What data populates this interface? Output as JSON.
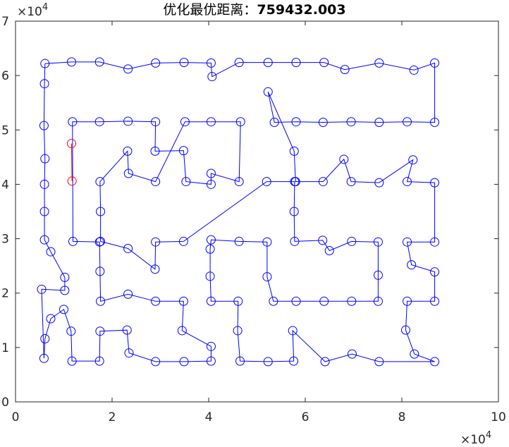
{
  "chart_data": {
    "type": "line",
    "title_prefix": "优化最优距离：",
    "title_value": "759432.003",
    "x_multiplier_label": "×10",
    "x_multiplier_exp": "4",
    "y_multiplier_label": "×10",
    "y_multiplier_exp": "4",
    "xlim": [
      0,
      100000
    ],
    "ylim": [
      0,
      70000
    ],
    "x_ticks": [
      0,
      20000,
      40000,
      60000,
      80000,
      100000
    ],
    "x_tick_labels": [
      "0",
      "2",
      "4",
      "6",
      "8",
      "10"
    ],
    "y_ticks": [
      0,
      10000,
      20000,
      30000,
      40000,
      50000,
      60000,
      70000
    ],
    "y_tick_labels": [
      "0",
      "1",
      "2",
      "3",
      "4",
      "5",
      "6",
      "7"
    ],
    "grid": false,
    "route_color": "#0000ff",
    "highlight_color": "#ff0000",
    "route": [
      [
        6100,
        62200
      ],
      [
        11600,
        62500
      ],
      [
        17400,
        62500
      ],
      [
        23300,
        61200
      ],
      [
        29000,
        62300
      ],
      [
        34900,
        62400
      ],
      [
        40500,
        62300
      ],
      [
        40700,
        59800
      ],
      [
        46300,
        62400
      ],
      [
        52300,
        62400
      ],
      [
        58100,
        62400
      ],
      [
        63900,
        62400
      ],
      [
        68200,
        61100
      ],
      [
        75300,
        62300
      ],
      [
        82500,
        61000
      ],
      [
        86800,
        62300
      ],
      [
        86800,
        51400
      ],
      [
        81100,
        51500
      ],
      [
        75300,
        51400
      ],
      [
        69500,
        51500
      ],
      [
        63700,
        51400
      ],
      [
        58100,
        51500
      ],
      [
        53600,
        51400
      ],
      [
        52300,
        57000
      ],
      [
        57700,
        46100
      ],
      [
        58000,
        40500
      ],
      [
        63700,
        40500
      ],
      [
        68000,
        44600
      ],
      [
        69500,
        40500
      ],
      [
        75300,
        40300
      ],
      [
        82300,
        44500
      ],
      [
        81100,
        40500
      ],
      [
        86800,
        40300
      ],
      [
        86800,
        29400
      ],
      [
        81100,
        29400
      ],
      [
        82000,
        25200
      ],
      [
        86800,
        23900
      ],
      [
        86800,
        18500
      ],
      [
        81100,
        18500
      ],
      [
        80800,
        13200
      ],
      [
        82600,
        8800
      ],
      [
        86800,
        7400
      ],
      [
        75300,
        7400
      ],
      [
        69700,
        8800
      ],
      [
        64100,
        7400
      ],
      [
        57400,
        13100
      ],
      [
        57600,
        7500
      ],
      [
        52300,
        7400
      ],
      [
        46500,
        7500
      ],
      [
        46000,
        13100
      ],
      [
        46100,
        18500
      ],
      [
        40500,
        18500
      ],
      [
        40300,
        23100
      ],
      [
        40300,
        28100
      ],
      [
        40500,
        29800
      ],
      [
        46300,
        29500
      ],
      [
        52100,
        29400
      ],
      [
        52100,
        23000
      ],
      [
        53400,
        18500
      ],
      [
        58100,
        18500
      ],
      [
        63900,
        18500
      ],
      [
        69600,
        18500
      ],
      [
        75100,
        18500
      ],
      [
        75100,
        23300
      ],
      [
        75100,
        29400
      ],
      [
        69600,
        29500
      ],
      [
        65000,
        27800
      ],
      [
        63600,
        29700
      ],
      [
        57800,
        29500
      ],
      [
        57700,
        35000
      ],
      [
        57800,
        40500
      ],
      [
        52000,
        40500
      ],
      [
        34800,
        29500
      ],
      [
        29000,
        29400
      ],
      [
        28900,
        24400
      ],
      [
        23300,
        28200
      ],
      [
        17600,
        29500
      ],
      [
        17600,
        35000
      ],
      [
        17500,
        40500
      ],
      [
        23200,
        46100
      ],
      [
        23400,
        42000
      ],
      [
        29000,
        40500
      ],
      [
        35100,
        51500
      ],
      [
        40500,
        51500
      ],
      [
        46600,
        51500
      ],
      [
        46300,
        40500
      ],
      [
        40500,
        42000
      ],
      [
        40500,
        40000
      ],
      [
        35300,
        40500
      ],
      [
        34800,
        46200
      ],
      [
        28900,
        46100
      ],
      [
        29000,
        51500
      ],
      [
        23300,
        51600
      ],
      [
        17400,
        51500
      ],
      [
        11800,
        51500
      ],
      [
        11900,
        29500
      ],
      [
        17400,
        29400
      ],
      [
        17500,
        24000
      ],
      [
        17600,
        18500
      ],
      [
        23300,
        19800
      ],
      [
        29000,
        18500
      ],
      [
        34800,
        18500
      ],
      [
        34500,
        13100
      ],
      [
        40500,
        10200
      ],
      [
        40500,
        7500
      ],
      [
        34900,
        7400
      ],
      [
        29000,
        7400
      ],
      [
        23500,
        9000
      ],
      [
        23100,
        13200
      ],
      [
        17500,
        13000
      ],
      [
        17400,
        7500
      ],
      [
        11700,
        7500
      ],
      [
        11500,
        13000
      ],
      [
        10000,
        17000
      ],
      [
        7300,
        15300
      ],
      [
        6100,
        11600
      ],
      [
        5900,
        8000
      ],
      [
        5400,
        20700
      ],
      [
        10200,
        20500
      ],
      [
        10200,
        22900
      ],
      [
        7300,
        27600
      ],
      [
        6000,
        29800
      ],
      [
        6000,
        35000
      ],
      [
        6000,
        40000
      ],
      [
        6100,
        44700
      ],
      [
        5900,
        50800
      ],
      [
        6000,
        58500
      ],
      [
        6100,
        62200
      ]
    ],
    "highlight_segment": [
      [
        11600,
        47500
      ],
      [
        11700,
        40600
      ]
    ]
  }
}
